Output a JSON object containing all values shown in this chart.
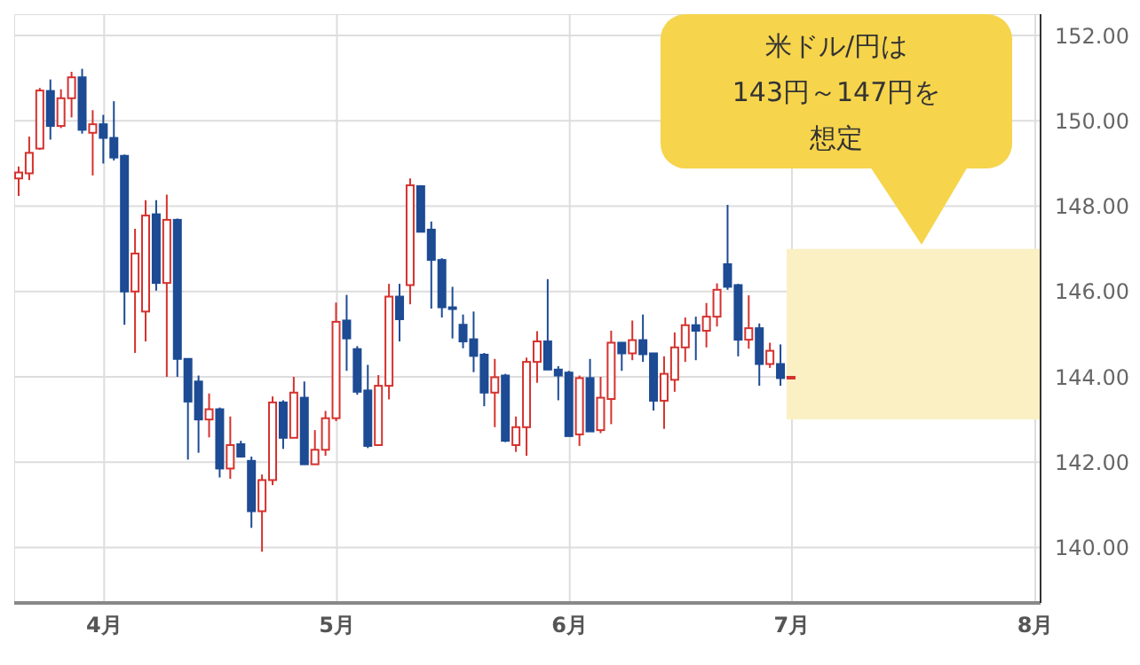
{
  "chart_data": {
    "type": "candlestick",
    "categories": [
      null,
      null,
      null,
      null,
      null,
      null,
      null,
      null,
      "4月",
      null,
      null,
      null,
      null,
      null,
      null,
      null,
      null,
      null,
      null,
      null,
      null,
      null,
      null,
      null,
      null,
      null,
      null,
      null,
      null,
      null,
      "5月",
      null,
      null,
      null,
      null,
      null,
      null,
      null,
      null,
      null,
      null,
      null,
      null,
      null,
      null,
      null,
      null,
      null,
      null,
      null,
      null,
      null,
      "6月",
      null,
      null,
      null,
      null,
      null,
      null,
      null,
      null,
      null,
      null,
      null,
      null,
      null,
      null,
      null,
      null,
      null,
      null,
      null,
      null,
      "7月",
      null,
      null,
      null,
      null,
      null,
      null,
      null,
      null,
      null,
      null,
      null,
      null,
      null,
      null,
      null,
      null,
      null,
      null,
      null,
      null,
      null,
      null,
      "8月"
    ],
    "ohlc": [
      [
        148.65,
        148.93,
        148.24,
        148.79
      ],
      [
        148.77,
        149.63,
        148.61,
        149.25
      ],
      [
        149.35,
        150.77,
        149.32,
        150.71
      ],
      [
        150.7,
        150.97,
        149.56,
        149.88
      ],
      [
        149.88,
        150.74,
        149.83,
        150.53
      ],
      [
        150.53,
        151.15,
        150.08,
        151.02
      ],
      [
        151.02,
        151.22,
        149.7,
        149.79
      ],
      [
        149.72,
        150.25,
        148.72,
        149.92
      ],
      [
        149.92,
        150.14,
        149.0,
        149.6
      ],
      [
        149.6,
        150.46,
        149.07,
        149.14
      ],
      [
        149.18,
        149.21,
        145.22,
        146.0
      ],
      [
        146.0,
        147.47,
        144.56,
        146.89
      ],
      [
        145.53,
        148.14,
        144.83,
        147.78
      ],
      [
        147.81,
        148.14,
        146.02,
        146.2
      ],
      [
        146.2,
        148.27,
        144.0,
        147.68
      ],
      [
        147.68,
        147.71,
        144.0,
        144.42
      ],
      [
        144.42,
        144.42,
        142.06,
        143.42
      ],
      [
        143.89,
        144.03,
        142.22,
        143.0
      ],
      [
        143.0,
        143.61,
        142.58,
        143.24
      ],
      [
        143.24,
        143.28,
        141.64,
        141.85
      ],
      [
        141.85,
        143.07,
        141.61,
        142.4
      ],
      [
        142.42,
        142.5,
        142.11,
        142.13
      ],
      [
        142.03,
        142.13,
        140.46,
        140.85
      ],
      [
        140.85,
        141.71,
        139.9,
        141.58
      ],
      [
        141.58,
        143.54,
        141.46,
        143.4
      ],
      [
        143.4,
        143.45,
        142.31,
        142.57
      ],
      [
        142.57,
        144.0,
        142.57,
        143.63
      ],
      [
        143.51,
        143.89,
        141.95,
        141.95
      ],
      [
        141.95,
        142.75,
        141.95,
        142.29
      ],
      [
        142.29,
        143.2,
        142.15,
        143.03
      ],
      [
        143.03,
        145.74,
        142.96,
        145.29
      ],
      [
        145.32,
        145.92,
        144.14,
        144.9
      ],
      [
        144.65,
        144.72,
        143.58,
        143.65
      ],
      [
        143.68,
        144.28,
        142.33,
        142.38
      ],
      [
        142.4,
        144.04,
        142.4,
        143.79
      ],
      [
        143.79,
        146.18,
        143.47,
        145.88
      ],
      [
        145.88,
        146.18,
        144.83,
        145.35
      ],
      [
        146.15,
        148.65,
        145.7,
        148.49
      ],
      [
        148.47,
        148.49,
        147.4,
        147.4
      ],
      [
        147.45,
        147.64,
        145.6,
        146.74
      ],
      [
        146.74,
        146.78,
        145.39,
        145.63
      ],
      [
        145.63,
        146.11,
        144.9,
        145.62
      ],
      [
        145.22,
        145.46,
        144.67,
        144.83
      ],
      [
        144.88,
        145.53,
        144.11,
        144.49
      ],
      [
        144.52,
        144.56,
        143.31,
        143.63
      ],
      [
        143.63,
        144.42,
        142.82,
        143.99
      ],
      [
        144.03,
        144.07,
        142.47,
        142.5
      ],
      [
        142.4,
        143.07,
        142.24,
        142.82
      ],
      [
        142.82,
        144.45,
        142.15,
        144.35
      ],
      [
        144.35,
        145.07,
        143.86,
        144.83
      ],
      [
        144.83,
        146.29,
        144.17,
        144.17
      ],
      [
        144.17,
        144.25,
        143.45,
        144.03
      ],
      [
        144.1,
        144.14,
        142.61,
        142.61
      ],
      [
        142.65,
        144.03,
        142.38,
        143.97
      ],
      [
        143.97,
        144.42,
        142.72,
        142.72
      ],
      [
        142.75,
        144.0,
        142.68,
        143.51
      ],
      [
        143.48,
        145.08,
        142.89,
        144.8
      ],
      [
        144.8,
        144.8,
        144.14,
        144.55
      ],
      [
        144.55,
        145.32,
        144.39,
        144.86
      ],
      [
        144.86,
        145.46,
        144.35,
        144.53
      ],
      [
        144.55,
        144.55,
        143.21,
        143.44
      ],
      [
        143.44,
        144.48,
        142.78,
        144.07
      ],
      [
        143.93,
        145.04,
        143.65,
        144.69
      ],
      [
        144.69,
        145.39,
        144.35,
        145.21
      ],
      [
        145.21,
        145.41,
        144.39,
        145.08
      ],
      [
        145.08,
        145.73,
        144.69,
        145.41
      ],
      [
        145.41,
        146.19,
        145.18,
        146.04
      ],
      [
        146.64,
        148.03,
        146.04,
        146.11
      ],
      [
        146.15,
        146.18,
        144.48,
        144.87
      ],
      [
        144.87,
        145.91,
        144.66,
        145.14
      ],
      [
        145.14,
        145.25,
        143.79,
        144.3
      ],
      [
        144.3,
        144.8,
        144.21,
        144.61
      ],
      [
        144.3,
        144.76,
        143.79,
        143.97
      ],
      [
        143.97,
        144.02,
        143.96,
        144.0
      ],
      null,
      null,
      null,
      null,
      null,
      null,
      null,
      null,
      null,
      null,
      null,
      null,
      null,
      null,
      null,
      null,
      null,
      null,
      null,
      null,
      null,
      null,
      null
    ],
    "ylim": [
      138.7,
      152.5
    ],
    "yticks": [
      {
        "value": 140,
        "label": "140.00"
      },
      {
        "value": 142,
        "label": "142.00"
      },
      {
        "value": 144,
        "label": "144.00"
      },
      {
        "value": 146,
        "label": "146.00"
      },
      {
        "value": 148,
        "label": "148.00"
      },
      {
        "value": 150,
        "label": "150.00"
      },
      {
        "value": 152,
        "label": "152.00"
      }
    ],
    "grid": true,
    "bands": [
      {
        "axis": "y",
        "from": 143,
        "to": 147,
        "color": "#fbf0c4"
      }
    ],
    "annotations": [
      "米ドル/円は",
      "143円～147円を",
      "想定"
    ]
  }
}
